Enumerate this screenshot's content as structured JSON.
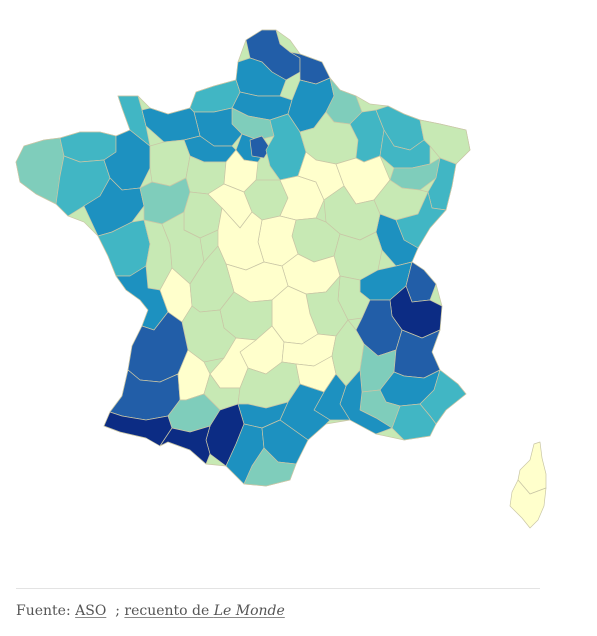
{
  "source": {
    "prefix": "Fuente: ",
    "link1": "ASO",
    "separator": "  ; ",
    "link2_text": "recuento de ",
    "link2_italic": "Le Monde"
  },
  "palette": {
    "0": "#ffffcc",
    "1": "#c7e9b4",
    "2": "#7fcdbb",
    "3": "#41b6c4",
    "4": "#1d91c0",
    "5": "#225ea8",
    "6": "#0c2c84"
  }
}
